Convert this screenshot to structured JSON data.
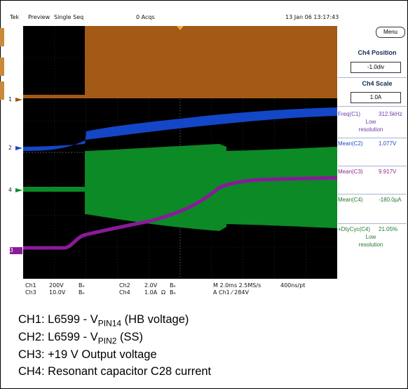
{
  "topbar": {
    "brand": "Tek",
    "preview": "Preview",
    "mode": "Single Seq",
    "acqs": "0 Acqs",
    "timestamp": "13 Jan 06 13:17:43"
  },
  "side_panel": {
    "menu_label": "Menu",
    "position_title": "Ch4 Position",
    "position_value": "-1.0div",
    "scale_title": "Ch4 Scale",
    "scale_value": "1.0A",
    "measurements": [
      {
        "label": "Freq(C1)",
        "value": "312.5kHz",
        "note1": "Low",
        "note2": "resolution",
        "color": "#6a3aa8"
      },
      {
        "label": "Mean(C2)",
        "value": "1.077V",
        "color": "#1c4cc8"
      },
      {
        "label": "Mean(C3)",
        "value": "9.917V",
        "color": "#8a2a88"
      },
      {
        "label": "Mean(C4)",
        "value": "-180.0µA",
        "color": "#1f7a2e"
      },
      {
        "label": "+DtyCyc(C4)",
        "value": "21.05%",
        "note1": "Low",
        "note2": "resolution",
        "color": "#1f7a2e"
      }
    ]
  },
  "markers": {
    "ch1": "1",
    "ch2": "2",
    "ch4": "4",
    "ch3": "3"
  },
  "bottom_readout": {
    "ch1": "Ch1",
    "ch1_scale": "200V",
    "ch3": "Ch3",
    "ch3_scale": "10.0V",
    "bw1": "Bₑ",
    "bw3": "Bₑ",
    "ch2": "Ch2",
    "ch2_scale": "2.0V",
    "ch4": "Ch4",
    "ch4_scale": "1.0A",
    "omega": "Ω",
    "bw2": "Bₑ",
    "bw4": "Bₑ",
    "timebase": "M 2.0ms 2.5MS/s",
    "trigger": "A  Ch1  ⁄  284V",
    "record": "400ns/pt"
  },
  "captions": {
    "ch1_prefix": "CH1: L6599 - V",
    "ch1_sub": "PIN14",
    "ch1_suffix": " (HB voltage)",
    "ch2_prefix": "CH2: L6599 - V",
    "ch2_sub": "PIN2",
    "ch2_suffix": " (SS)",
    "ch3": "CH3: +19 V Output voltage",
    "ch4": "CH4: Resonant capacitor C28 current"
  },
  "colors": {
    "ch1": "#a35a16",
    "ch2": "#1446c8",
    "ch3": "#8a1a9a",
    "ch4": "#0c8a26"
  }
}
